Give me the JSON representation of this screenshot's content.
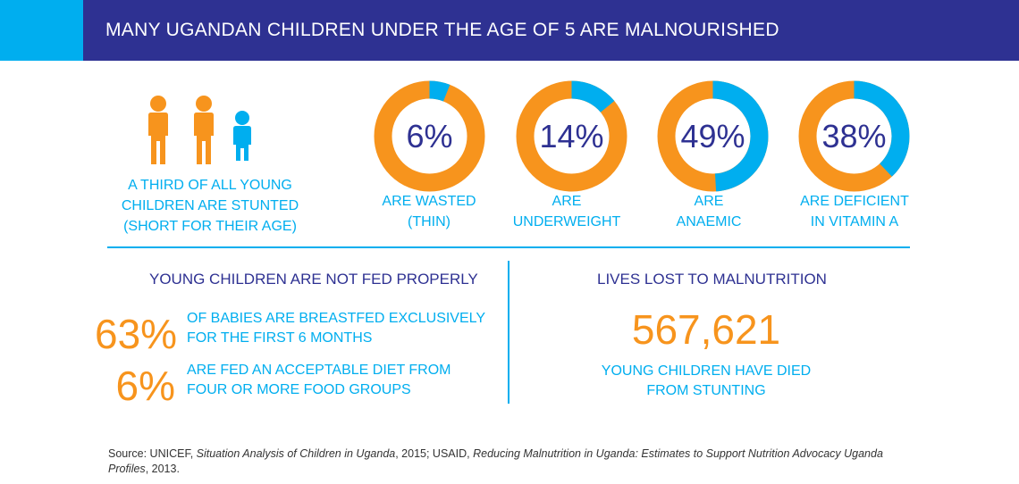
{
  "header": {
    "title": "MANY UGANDAN CHILDREN UNDER THE AGE OF 5 ARE MALNOURISHED"
  },
  "stunted": {
    "icons": [
      "child-icon",
      "child-icon",
      "small-child-icon"
    ],
    "caption_lines": [
      "A THIRD OF ALL YOUNG",
      "CHILDREN ARE STUNTED",
      "(SHORT FOR THEIR AGE)"
    ]
  },
  "chart_data": {
    "type": "pie",
    "series": [
      {
        "label": "6%",
        "value": 6,
        "caption": [
          "ARE WASTED",
          "(THIN)"
        ]
      },
      {
        "label": "14%",
        "value": 14,
        "caption": [
          "ARE",
          "UNDERWEIGHT"
        ]
      },
      {
        "label": "49%",
        "value": 49,
        "caption": [
          "ARE",
          "ANAEMIC"
        ]
      },
      {
        "label": "38%",
        "value": 38,
        "caption": [
          "ARE DEFICIENT",
          "IN VITAMIN A"
        ]
      }
    ],
    "colors": {
      "value": "#00aeef",
      "remainder": "#f7941d"
    }
  },
  "feeding": {
    "title": "YOUNG CHILDREN ARE NOT FED PROPERLY",
    "stats": [
      {
        "number": "63%",
        "lines": [
          "OF BABIES ARE BREASTFED EXCLUSIVELY",
          "FOR THE FIRST 6 MONTHS"
        ]
      },
      {
        "number": "6%",
        "lines": [
          "ARE FED AN ACCEPTABLE DIET FROM",
          "FOUR OR MORE FOOD GROUPS"
        ]
      }
    ]
  },
  "lives": {
    "title": "LIVES LOST TO MALNUTRITION",
    "number": "567,621",
    "caption_lines": [
      "YOUNG CHILDREN HAVE DIED",
      "FROM STUNTING"
    ]
  },
  "source": {
    "prefix": "Source: UNICEF, ",
    "title1": "Situation Analysis of Children in Uganda",
    "mid": ", 2015; USAID, ",
    "title2": "Reducing Malnutrition in Uganda: Estimates to Support Nutrition Advocacy Uganda Profiles",
    "suffix": ", 2013."
  },
  "colors": {
    "navy": "#2e3192",
    "cyan": "#00aeef",
    "orange": "#f7941d"
  }
}
